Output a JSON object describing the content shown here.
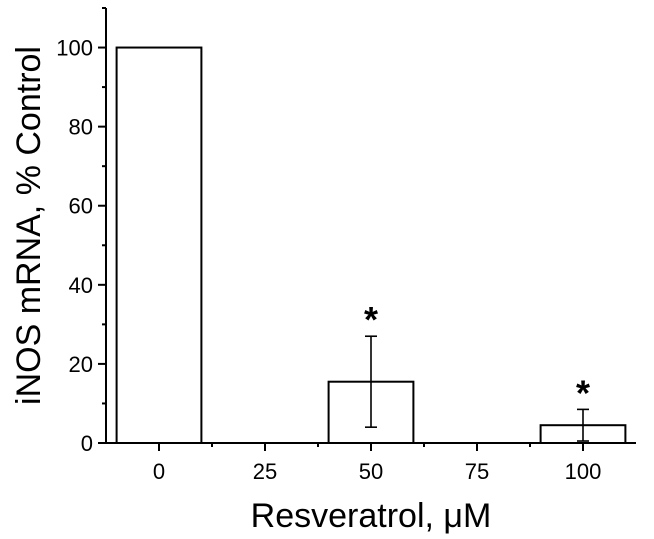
{
  "chart_data": {
    "type": "bar",
    "xlabel": "Resveratrol, μM",
    "ylabel": "iNOS mRNA, % Control",
    "x_ticks": [
      "0",
      "25",
      "50",
      "75",
      "100"
    ],
    "y_ticks": [
      "0",
      "20",
      "40",
      "60",
      "80",
      "100"
    ],
    "xlim": [
      -12.5,
      112.5
    ],
    "ylim": [
      0,
      110
    ],
    "y_minor_step": 10,
    "bar_width": 20,
    "bars": [
      {
        "x": 0,
        "value": 100,
        "error_low": 0,
        "error_high": 0,
        "marker": ""
      },
      {
        "x": 50,
        "value": 15.5,
        "error_low": 4,
        "error_high": 27,
        "marker": "*"
      },
      {
        "x": 100,
        "value": 4.5,
        "error_low": 0.5,
        "error_high": 8.5,
        "marker": "*"
      }
    ],
    "grid": false,
    "legend": false
  }
}
